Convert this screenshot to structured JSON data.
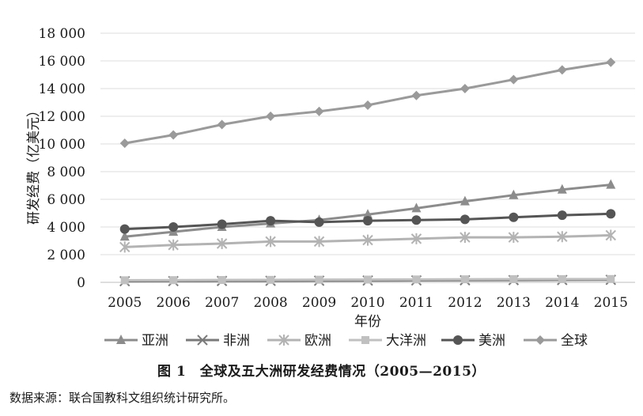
{
  "chart_data": {
    "type": "line",
    "title": "",
    "xlabel": "年份",
    "ylabel": "研发经费（亿美元）",
    "x": [
      2005,
      2006,
      2007,
      2008,
      2009,
      2010,
      2011,
      2012,
      2013,
      2014,
      2015
    ],
    "ylim": [
      0,
      18000
    ],
    "yticks": [
      0,
      2000,
      4000,
      6000,
      8000,
      10000,
      12000,
      14000,
      16000,
      18000
    ],
    "ytick_labels": [
      "0",
      "2 000",
      "4 000",
      "6 000",
      "8 000",
      "10 000",
      "12 000",
      "14 000",
      "16 000",
      "18 000"
    ],
    "grid": true,
    "legend_position": "bottom",
    "series": [
      {
        "name": "亚洲",
        "marker": "triangle",
        "color": "#8c8c8c",
        "values": [
          3300,
          3650,
          4000,
          4250,
          4500,
          4900,
          5350,
          5850,
          6300,
          6700,
          7050
        ]
      },
      {
        "name": "非洲",
        "marker": "x",
        "color": "#7a7a7a",
        "values": [
          80,
          90,
          100,
          110,
          120,
          130,
          140,
          150,
          160,
          170,
          180
        ]
      },
      {
        "name": "欧洲",
        "marker": "star",
        "color": "#b3b3b3",
        "values": [
          2550,
          2700,
          2800,
          2950,
          2950,
          3050,
          3150,
          3250,
          3250,
          3300,
          3400
        ]
      },
      {
        "name": "大洋洲",
        "marker": "square",
        "color": "#c0c0c0",
        "values": [
          150,
          160,
          170,
          180,
          190,
          200,
          210,
          220,
          230,
          235,
          240
        ]
      },
      {
        "name": "美洲",
        "marker": "circle",
        "color": "#555555",
        "values": [
          3850,
          4000,
          4200,
          4450,
          4350,
          4450,
          4500,
          4550,
          4700,
          4850,
          4950
        ]
      },
      {
        "name": "全球",
        "marker": "diamond",
        "color": "#9a9a9a",
        "values": [
          10050,
          10650,
          11400,
          12000,
          12350,
          12800,
          13500,
          14000,
          14650,
          15350,
          15900
        ]
      }
    ]
  },
  "caption": "图 1　全球及五大洲研发经费情况（2005—2015）",
  "source_note": "数据来源：联合国教科文组织统计研究所。"
}
